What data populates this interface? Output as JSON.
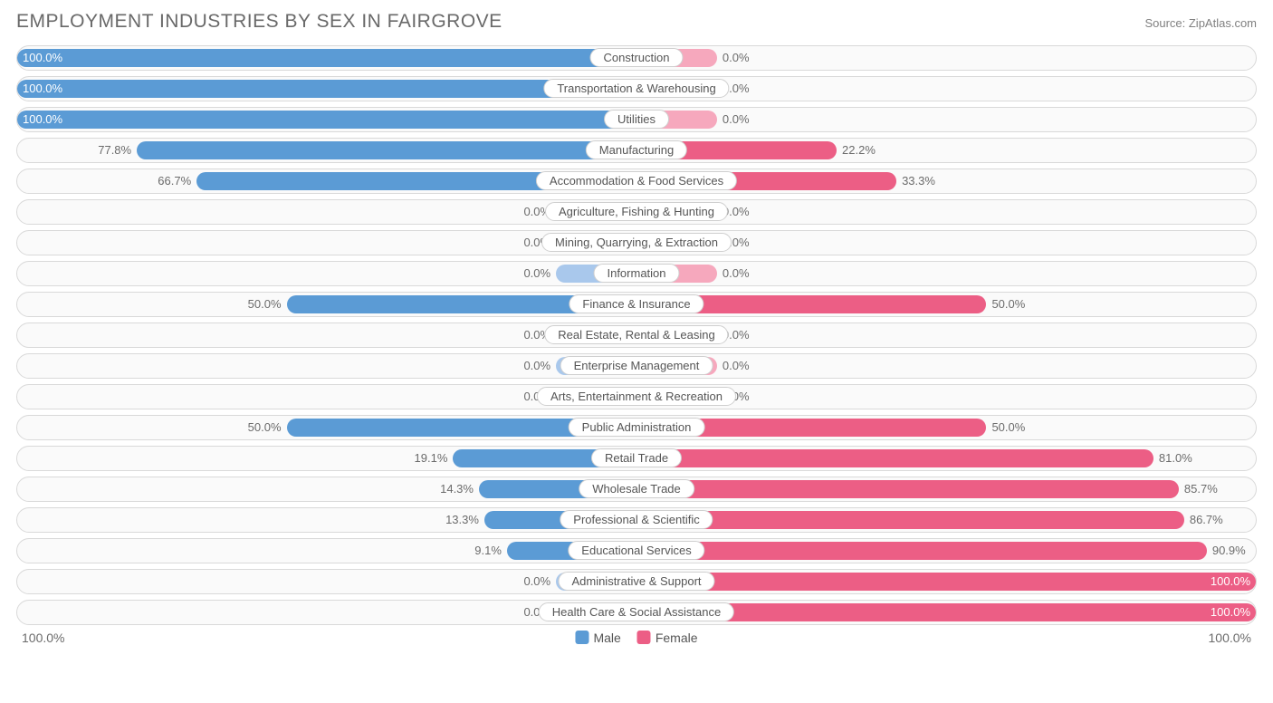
{
  "title": "EMPLOYMENT INDUSTRIES BY SEX IN FAIRGROVE",
  "source": "Source: ZipAtlas.com",
  "chart": {
    "type": "diverging-bar",
    "male_color_full": "#5b9bd5",
    "male_color_base": "#a9c8ec",
    "female_color_full": "#ec5e85",
    "female_color_base": "#f6a8bd",
    "row_bg": "#fafafa",
    "row_border": "#d9d9d9",
    "label_bg": "#ffffff",
    "label_border": "#cfcfcf",
    "text_color": "#6b6b6b",
    "title_color": "#696969",
    "base_bar_pct": 13,
    "rows": [
      {
        "category": "Construction",
        "male": 100.0,
        "female": 0.0
      },
      {
        "category": "Transportation & Warehousing",
        "male": 100.0,
        "female": 0.0
      },
      {
        "category": "Utilities",
        "male": 100.0,
        "female": 0.0
      },
      {
        "category": "Manufacturing",
        "male": 77.8,
        "female": 22.2
      },
      {
        "category": "Accommodation & Food Services",
        "male": 66.7,
        "female": 33.3
      },
      {
        "category": "Agriculture, Fishing & Hunting",
        "male": 0.0,
        "female": 0.0
      },
      {
        "category": "Mining, Quarrying, & Extraction",
        "male": 0.0,
        "female": 0.0
      },
      {
        "category": "Information",
        "male": 0.0,
        "female": 0.0
      },
      {
        "category": "Finance & Insurance",
        "male": 50.0,
        "female": 50.0
      },
      {
        "category": "Real Estate, Rental & Leasing",
        "male": 0.0,
        "female": 0.0
      },
      {
        "category": "Enterprise Management",
        "male": 0.0,
        "female": 0.0
      },
      {
        "category": "Arts, Entertainment & Recreation",
        "male": 0.0,
        "female": 0.0
      },
      {
        "category": "Public Administration",
        "male": 50.0,
        "female": 50.0
      },
      {
        "category": "Retail Trade",
        "male": 19.1,
        "female": 81.0
      },
      {
        "category": "Wholesale Trade",
        "male": 14.3,
        "female": 85.7
      },
      {
        "category": "Professional & Scientific",
        "male": 13.3,
        "female": 86.7
      },
      {
        "category": "Educational Services",
        "male": 9.1,
        "female": 90.9
      },
      {
        "category": "Administrative & Support",
        "male": 0.0,
        "female": 100.0
      },
      {
        "category": "Health Care & Social Assistance",
        "male": 0.0,
        "female": 100.0
      }
    ]
  },
  "axis": {
    "left": "100.0%",
    "right": "100.0%"
  },
  "legend": {
    "male": "Male",
    "female": "Female"
  }
}
